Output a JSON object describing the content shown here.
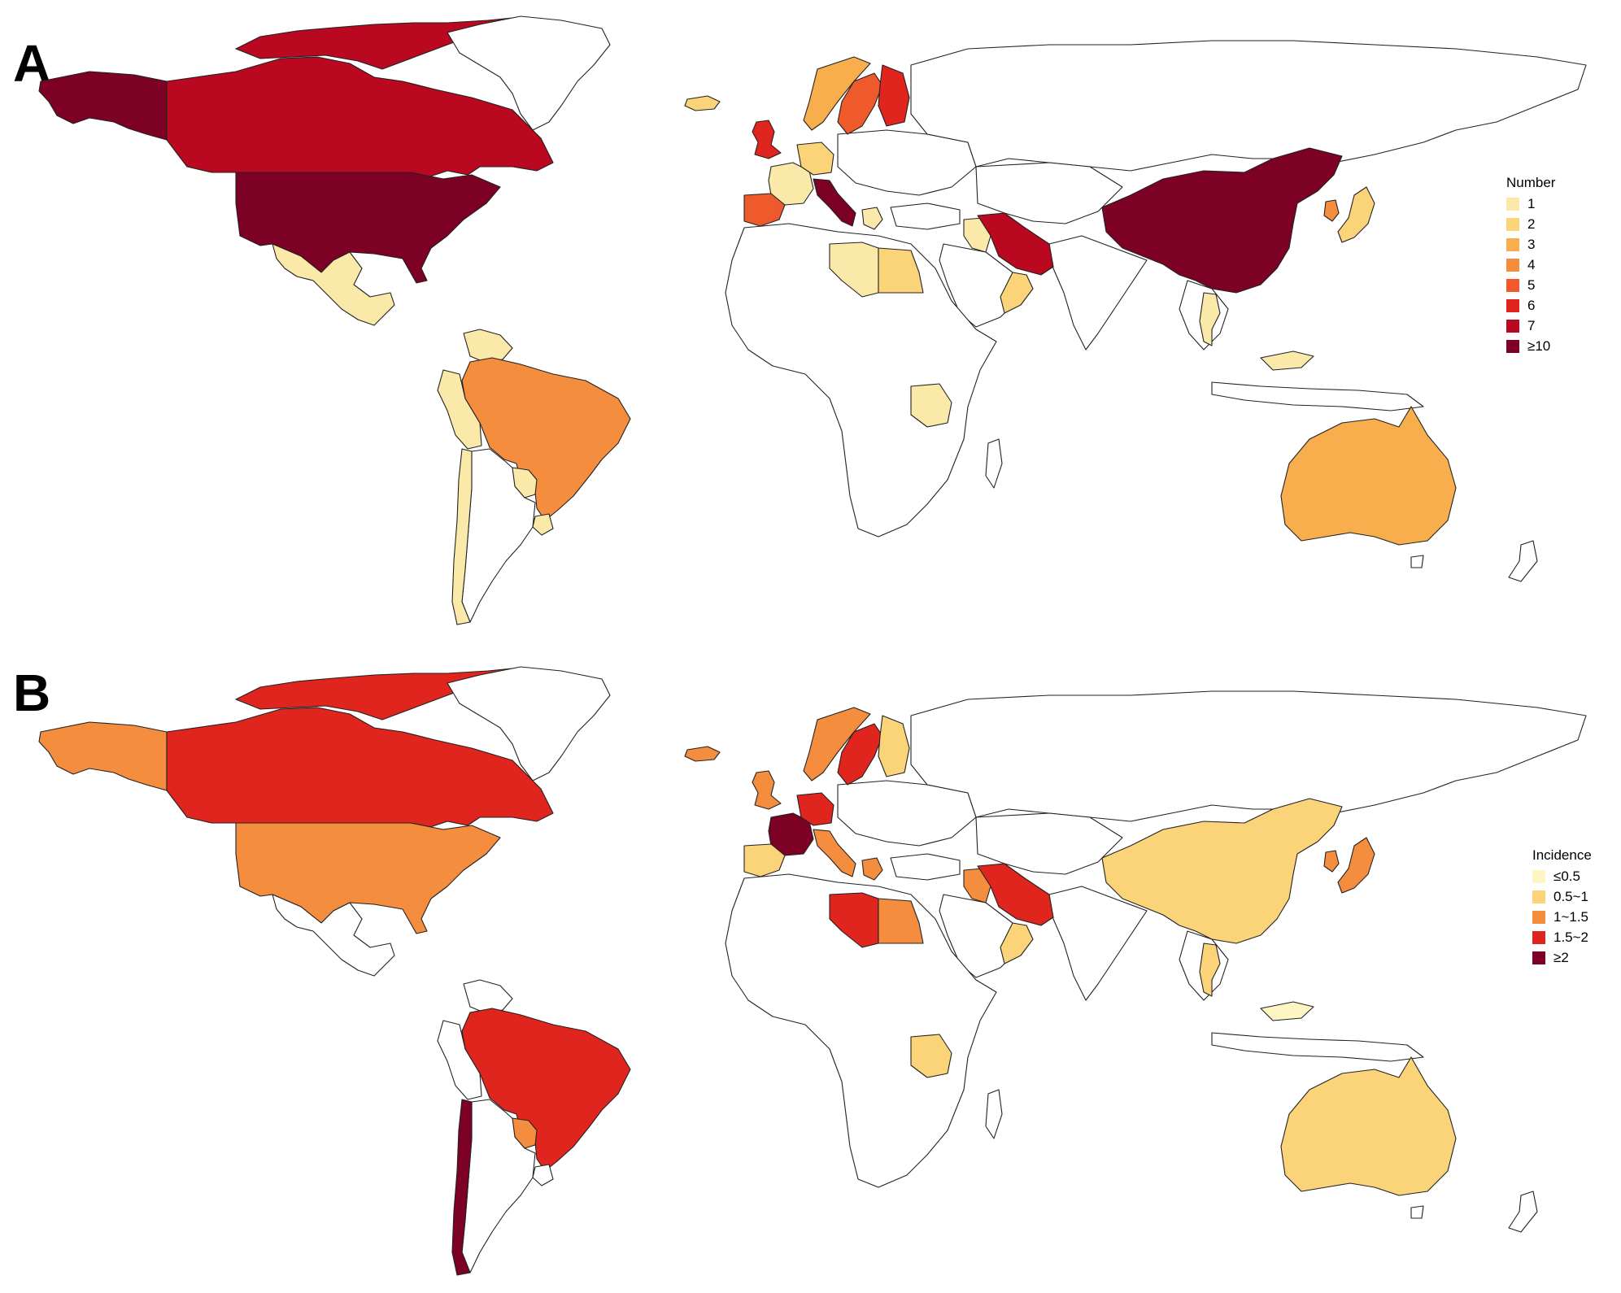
{
  "panels": [
    {
      "letter": "A",
      "legend": {
        "title": "Number",
        "items": [
          {
            "label": "1",
            "color": "#fbe9a9"
          },
          {
            "label": "2",
            "color": "#fbd47a"
          },
          {
            "label": "3",
            "color": "#f8ae4c"
          },
          {
            "label": "4",
            "color": "#f58d3e"
          },
          {
            "label": "5",
            "color": "#ee5a2b"
          },
          {
            "label": "6",
            "color": "#e0251f"
          },
          {
            "label": "7",
            "color": "#b9081f"
          },
          {
            "label": "≥10",
            "color": "#7d0025"
          }
        ]
      }
    },
    {
      "letter": "B",
      "legend": {
        "title": "Incidence",
        "items": [
          {
            "label": "≤0.5",
            "color": "#fdf6c2"
          },
          {
            "label": "0.5~1",
            "color": "#fbd47a"
          },
          {
            "label": "1~1.5",
            "color": "#f58d3e"
          },
          {
            "label": "1.5~2",
            "color": "#e0251f"
          },
          {
            "label": "≥2",
            "color": "#7d0025"
          }
        ]
      }
    }
  ],
  "countries": {
    "alaska": {
      "a": "≥10",
      "b": "1~1.5"
    },
    "canada": {
      "a": "7",
      "b": "1.5~2"
    },
    "usa": {
      "a": "≥10",
      "b": "1~1.5"
    },
    "mexico": {
      "a": "1",
      "b": null
    },
    "venezuela": {
      "a": "1",
      "b": null
    },
    "peru": {
      "a": "1",
      "b": null
    },
    "brazil": {
      "a": "4",
      "b": "1.5~2"
    },
    "paraguay": {
      "a": "1",
      "b": "1~1.5"
    },
    "chile": {
      "a": "1",
      "b": "≥2"
    },
    "uruguay": {
      "a": "1",
      "b": null
    },
    "iceland": {
      "a": "2",
      "b": "1~1.5"
    },
    "uk": {
      "a": "6",
      "b": "1~1.5"
    },
    "france": {
      "a": "1",
      "b": "≥2"
    },
    "spain": {
      "a": "5",
      "b": "0.5~1"
    },
    "germany": {
      "a": "2",
      "b": "1.5~2"
    },
    "italy": {
      "a": "≥10",
      "b": "1~1.5"
    },
    "norway": {
      "a": "3",
      "b": "1~1.5"
    },
    "sweden": {
      "a": "5",
      "b": "1.5~2"
    },
    "finland": {
      "a": "6",
      "b": "0.5~1"
    },
    "greece": {
      "a": "1",
      "b": "1~1.5"
    },
    "libya": {
      "a": "1",
      "b": "1.5~2"
    },
    "egypt": {
      "a": "2",
      "b": "1~1.5"
    },
    "iraq": {
      "a": "1",
      "b": "1~1.5"
    },
    "iran": {
      "a": "7",
      "b": "1.5~2"
    },
    "oman": {
      "a": "2",
      "b": "0.5~1"
    },
    "tanzania": {
      "a": "1",
      "b": "0.5~1"
    },
    "china": {
      "a": "≥10",
      "b": "0.5~1"
    },
    "korea": {
      "a": "4",
      "b": "1~1.5"
    },
    "japan": {
      "a": "2",
      "b": "1~1.5"
    },
    "thailand": {
      "a": "1",
      "b": "0.5~1"
    },
    "malaysia": {
      "a": "1",
      "b": "≤0.5"
    },
    "australia": {
      "a": "3",
      "b": "0.5~1"
    }
  }
}
